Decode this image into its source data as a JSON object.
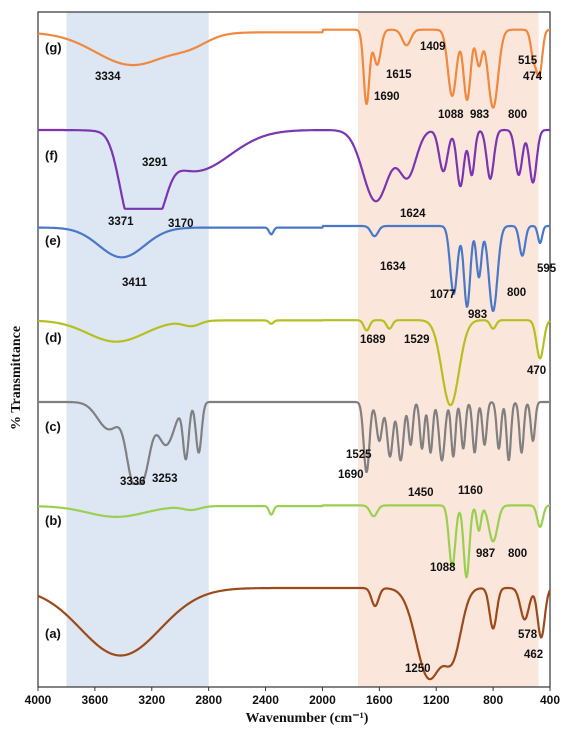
{
  "chart_data": {
    "type": "line",
    "xlabel": "Wavenumber (cm⁻¹)",
    "ylabel": "% Transmittance",
    "xlim": [
      4000,
      400
    ],
    "x_ticks": [
      "4000",
      "3600",
      "3200",
      "2800",
      "2400",
      "2000",
      "1600",
      "1200",
      "800",
      "400"
    ],
    "grid": false,
    "highlight_bands": [
      {
        "from": 3800,
        "to": 2800,
        "color": "#dde6f3"
      },
      {
        "from": 1750,
        "to": 480,
        "color": "#fbe6dc"
      }
    ],
    "series": [
      {
        "name": "(g)",
        "color": "#f0883e",
        "baseline": 0.55,
        "annotations": [
          "3334",
          "1690",
          "1615",
          "1409",
          "1088",
          "983",
          "800",
          "515",
          "474"
        ],
        "features": [
          {
            "x": 3334,
            "depth": 0.42,
            "width": 260
          },
          {
            "x": 2920,
            "depth": 0.1,
            "width": 120
          },
          {
            "x": 1690,
            "depth": 0.95,
            "width": 20
          },
          {
            "x": 1615,
            "depth": 0.45,
            "width": 25
          },
          {
            "x": 1409,
            "depth": 0.2,
            "width": 30
          },
          {
            "x": 1088,
            "depth": 0.85,
            "width": 30
          },
          {
            "x": 983,
            "depth": 0.9,
            "width": 25
          },
          {
            "x": 900,
            "depth": 0.45,
            "width": 20
          },
          {
            "x": 800,
            "depth": 1.0,
            "width": 35
          },
          {
            "x": 515,
            "depth": 0.35,
            "width": 20
          },
          {
            "x": 474,
            "depth": 0.55,
            "width": 20
          }
        ]
      },
      {
        "name": "(f)",
        "color": "#7b35b0",
        "baseline": 0.0,
        "annotations": [
          "3291",
          "3371",
          "3170",
          "1624"
        ],
        "features": [
          {
            "x": 3371,
            "depth": 0.85,
            "width": 70
          },
          {
            "x": 3291,
            "depth": 0.6,
            "width": 60
          },
          {
            "x": 3170,
            "depth": 0.82,
            "width": 70
          },
          {
            "x": 2900,
            "depth": 0.55,
            "width": 250
          },
          {
            "x": 1624,
            "depth": 0.95,
            "width": 90
          },
          {
            "x": 1400,
            "depth": 0.6,
            "width": 60
          },
          {
            "x": 1150,
            "depth": 0.55,
            "width": 30
          },
          {
            "x": 1030,
            "depth": 0.75,
            "width": 25
          },
          {
            "x": 950,
            "depth": 0.6,
            "width": 20
          },
          {
            "x": 820,
            "depth": 0.65,
            "width": 25
          },
          {
            "x": 620,
            "depth": 0.6,
            "width": 25
          },
          {
            "x": 520,
            "depth": 0.7,
            "width": 25
          }
        ]
      },
      {
        "name": "(e)",
        "color": "#4a78c8",
        "baseline": 0.3,
        "annotations": [
          "3411",
          "1634",
          "1077",
          "983",
          "800",
          "595"
        ],
        "features": [
          {
            "x": 3411,
            "depth": 0.35,
            "width": 160
          },
          {
            "x": 2360,
            "depth": 0.08,
            "width": 15
          },
          {
            "x": 1634,
            "depth": 0.12,
            "width": 25
          },
          {
            "x": 1077,
            "depth": 0.8,
            "width": 25
          },
          {
            "x": 983,
            "depth": 0.95,
            "width": 22
          },
          {
            "x": 900,
            "depth": 0.6,
            "width": 18
          },
          {
            "x": 800,
            "depth": 1.0,
            "width": 30
          },
          {
            "x": 595,
            "depth": 0.35,
            "width": 20
          },
          {
            "x": 470,
            "depth": 0.2,
            "width": 15
          }
        ]
      },
      {
        "name": "(d)",
        "color": "#b5c020",
        "baseline": 0.05,
        "annotations": [
          "1689",
          "1529",
          "470"
        ],
        "features": [
          {
            "x": 3450,
            "depth": 0.25,
            "width": 200
          },
          {
            "x": 2920,
            "depth": 0.06,
            "width": 60
          },
          {
            "x": 2360,
            "depth": 0.04,
            "width": 15
          },
          {
            "x": 1689,
            "depth": 0.12,
            "width": 20
          },
          {
            "x": 1529,
            "depth": 0.1,
            "width": 20
          },
          {
            "x": 1100,
            "depth": 1.0,
            "width": 60
          },
          {
            "x": 800,
            "depth": 0.1,
            "width": 20
          },
          {
            "x": 470,
            "depth": 0.45,
            "width": 25
          }
        ]
      },
      {
        "name": "(c)",
        "color": "#808080",
        "baseline": 0.0,
        "annotations": [
          "3336",
          "3253",
          "1690",
          "1525",
          "1450",
          "1160"
        ],
        "features": [
          {
            "x": 3500,
            "depth": 0.35,
            "width": 80
          },
          {
            "x": 3336,
            "depth": 0.85,
            "width": 45
          },
          {
            "x": 3253,
            "depth": 0.8,
            "width": 45
          },
          {
            "x": 3100,
            "depth": 0.55,
            "width": 60
          },
          {
            "x": 2960,
            "depth": 0.7,
            "width": 20
          },
          {
            "x": 2870,
            "depth": 0.65,
            "width": 20
          },
          {
            "x": 1690,
            "depth": 0.9,
            "width": 20
          },
          {
            "x": 1600,
            "depth": 0.5,
            "width": 20
          },
          {
            "x": 1525,
            "depth": 0.7,
            "width": 20
          },
          {
            "x": 1450,
            "depth": 0.75,
            "width": 20
          },
          {
            "x": 1380,
            "depth": 0.55,
            "width": 15
          },
          {
            "x": 1300,
            "depth": 0.6,
            "width": 15
          },
          {
            "x": 1240,
            "depth": 0.65,
            "width": 15
          },
          {
            "x": 1160,
            "depth": 0.75,
            "width": 20
          },
          {
            "x": 1080,
            "depth": 0.7,
            "width": 15
          },
          {
            "x": 1010,
            "depth": 0.6,
            "width": 15
          },
          {
            "x": 930,
            "depth": 0.65,
            "width": 15
          },
          {
            "x": 860,
            "depth": 0.55,
            "width": 15
          },
          {
            "x": 760,
            "depth": 0.6,
            "width": 15
          },
          {
            "x": 690,
            "depth": 0.75,
            "width": 15
          },
          {
            "x": 600,
            "depth": 0.65,
            "width": 15
          },
          {
            "x": 520,
            "depth": 0.5,
            "width": 15
          }
        ]
      },
      {
        "name": "(b)",
        "color": "#9ad050",
        "baseline": 0.15,
        "annotations": [
          "1088",
          "987",
          "800"
        ],
        "features": [
          {
            "x": 3450,
            "depth": 0.15,
            "width": 200
          },
          {
            "x": 2920,
            "depth": 0.05,
            "width": 60
          },
          {
            "x": 2360,
            "depth": 0.12,
            "width": 15
          },
          {
            "x": 1640,
            "depth": 0.15,
            "width": 25
          },
          {
            "x": 1088,
            "depth": 0.85,
            "width": 22
          },
          {
            "x": 987,
            "depth": 1.0,
            "width": 20
          },
          {
            "x": 900,
            "depth": 0.35,
            "width": 15
          },
          {
            "x": 800,
            "depth": 0.5,
            "width": 30
          },
          {
            "x": 470,
            "depth": 0.3,
            "width": 20
          }
        ]
      },
      {
        "name": "(a)",
        "color": "#9c4a1a",
        "baseline": 0.0,
        "annotations": [
          "1250",
          "578",
          "462"
        ],
        "features": [
          {
            "x": 3420,
            "depth": 0.75,
            "width": 280
          },
          {
            "x": 1630,
            "depth": 0.2,
            "width": 25
          },
          {
            "x": 1250,
            "depth": 1.0,
            "width": 90
          },
          {
            "x": 1080,
            "depth": 0.65,
            "width": 60
          },
          {
            "x": 800,
            "depth": 0.45,
            "width": 25
          },
          {
            "x": 578,
            "depth": 0.35,
            "width": 30
          },
          {
            "x": 462,
            "depth": 0.55,
            "width": 25
          }
        ]
      }
    ]
  }
}
